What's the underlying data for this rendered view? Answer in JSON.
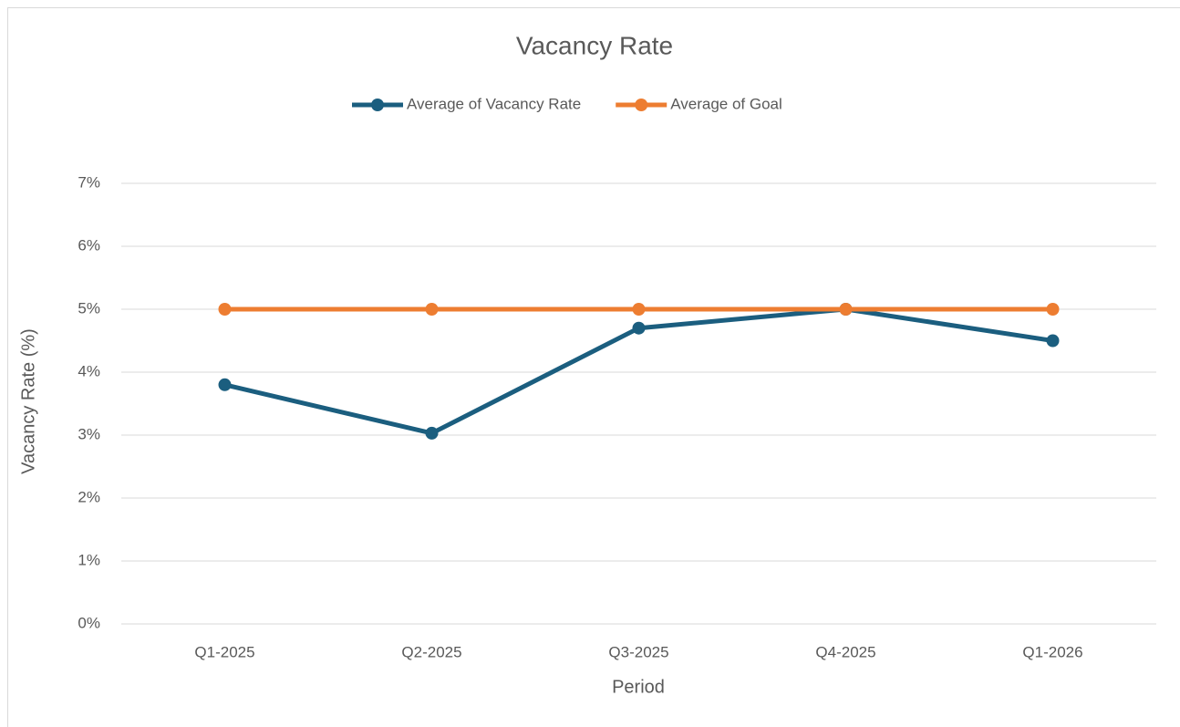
{
  "chart_data": {
    "type": "line",
    "title": "Vacancy Rate",
    "x_label": "Period",
    "y_label": "Vacancy Rate (%)",
    "categories": [
      "Q1-2025",
      "Q2-2025",
      "Q3-2025",
      "Q4-2025",
      "Q1-2026"
    ],
    "series": [
      {
        "name": "Average of Vacancy Rate",
        "color": "#1b5e7f",
        "values": [
          3.8,
          3.03,
          4.7,
          5.0,
          4.5
        ]
      },
      {
        "name": "Average of Goal",
        "color": "#ed7d31",
        "values": [
          5,
          5,
          5,
          5,
          5
        ]
      }
    ],
    "ylim": [
      0,
      7
    ],
    "yticks": [
      {
        "value": 0,
        "label": "0%"
      },
      {
        "value": 1,
        "label": "1%"
      },
      {
        "value": 2,
        "label": "2%"
      },
      {
        "value": 3,
        "label": "3%"
      },
      {
        "value": 4,
        "label": "4%"
      },
      {
        "value": 5,
        "label": "5%"
      },
      {
        "value": 6,
        "label": "6%"
      },
      {
        "value": 7,
        "label": "7%"
      }
    ],
    "grid": true,
    "legend": "top"
  }
}
